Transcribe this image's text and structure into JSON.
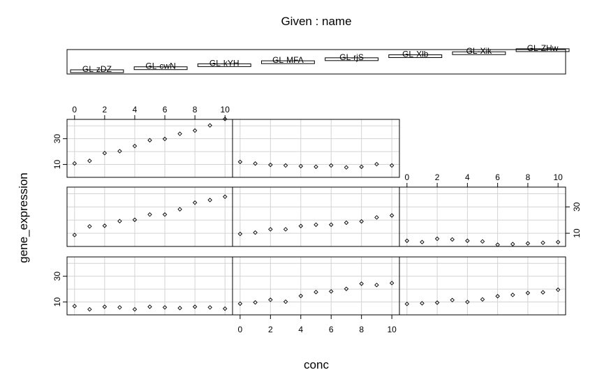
{
  "title": "Given : name",
  "chart_data": {
    "type": "scatter",
    "title": "Given : name",
    "xlabel": "conc",
    "ylabel": "gene_expression",
    "xlim": [
      -0.5,
      10.5
    ],
    "ylim": [
      0,
      45
    ],
    "x_ticks": [
      0,
      2,
      4,
      6,
      8,
      10
    ],
    "y_ticks": [
      10,
      30
    ],
    "grid": true,
    "layout": "coplot 3 rows x 3 columns (8 panels, bottom-left first)",
    "given_levels": [
      "GL-zDZ",
      "GL-cwN",
      "GL-kYH",
      "GL-MFA",
      "GL-rjS",
      "GL-Xlb",
      "GL-Xik",
      "GL-ZHw"
    ],
    "x": [
      0,
      1,
      2,
      3,
      4,
      5,
      6,
      7,
      8,
      9,
      10
    ],
    "series": [
      {
        "name": "GL-zDZ",
        "values": [
          6.8,
          4.3,
          6.3,
          5.8,
          4.3,
          6.3,
          5.8,
          5.3,
          6.3,
          5.8,
          4.8
        ]
      },
      {
        "name": "GL-cwN",
        "values": [
          8.7,
          9.7,
          11.7,
          10.2,
          14.7,
          17.7,
          18.2,
          20.2,
          24.2,
          23.2,
          24.7
        ]
      },
      {
        "name": "GL-kYH",
        "values": [
          8.5,
          9.0,
          9.5,
          11.5,
          10.0,
          12.0,
          14.5,
          15.5,
          17.0,
          17.5,
          19.5
        ]
      },
      {
        "name": "GL-MFA",
        "values": [
          8.7,
          15.2,
          15.7,
          19.2,
          20.2,
          24.2,
          24.2,
          28.2,
          33.2,
          35.2,
          37.7
        ]
      },
      {
        "name": "GL-rjS",
        "values": [
          9.5,
          10.5,
          13.0,
          13.0,
          15.5,
          16.5,
          16.5,
          18.0,
          19.0,
          22.0,
          23.5
        ]
      },
      {
        "name": "GL-Xlb",
        "values": [
          4.3,
          3.3,
          5.8,
          5.3,
          4.3,
          3.8,
          1.3,
          1.8,
          2.3,
          2.8,
          3.3
        ]
      },
      {
        "name": "GL-Xik",
        "values": [
          10.8,
          12.8,
          18.8,
          20.3,
          24.3,
          28.8,
          29.8,
          33.8,
          36.3,
          40.3,
          45.3
        ]
      },
      {
        "name": "GL-ZHw",
        "values": [
          12.0,
          10.7,
          9.7,
          9.2,
          8.7,
          8.2,
          9.2,
          7.7,
          8.2,
          10.2,
          9.2
        ]
      }
    ]
  }
}
